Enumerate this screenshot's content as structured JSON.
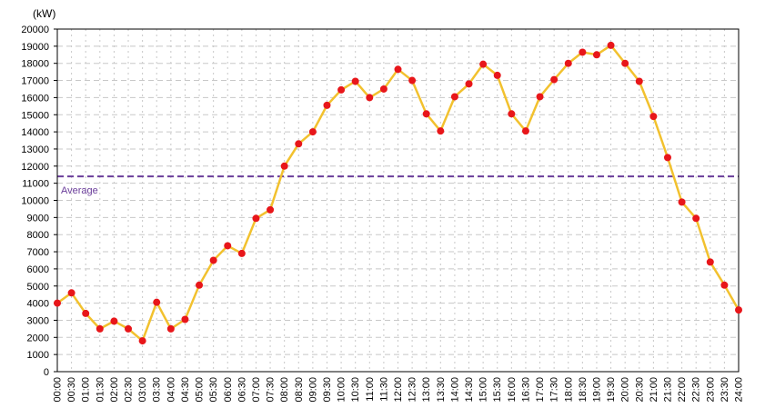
{
  "chart_data": {
    "type": "line",
    "unit_label": "(kW)",
    "ylim": [
      0,
      20000
    ],
    "y_ticks": [
      "0",
      "1000",
      "2000",
      "3000",
      "4000",
      "5000",
      "6000",
      "7000",
      "8000",
      "9000",
      "10000",
      "11000",
      "12000",
      "13000",
      "14000",
      "15000",
      "16000",
      "17000",
      "18000",
      "19000",
      "20000"
    ],
    "x": [
      "00:00",
      "00:30",
      "01:00",
      "01:30",
      "02:00",
      "02:30",
      "03:00",
      "03:30",
      "04:00",
      "04:30",
      "05:00",
      "05:30",
      "06:00",
      "06:30",
      "07:00",
      "07:30",
      "08:00",
      "08:30",
      "09:00",
      "09:30",
      "10:00",
      "10:30",
      "11:00",
      "11:30",
      "12:00",
      "12:30",
      "13:00",
      "13:30",
      "14:00",
      "14:30",
      "15:00",
      "15:30",
      "16:00",
      "16:30",
      "17:00",
      "17:30",
      "18:00",
      "18:30",
      "19:00",
      "19:30",
      "20:00",
      "20:30",
      "21:00",
      "21:30",
      "22:00",
      "22:30",
      "23:00",
      "23:30",
      "24:00"
    ],
    "values": [
      4000,
      4600,
      3400,
      2500,
      2950,
      2500,
      1800,
      4050,
      2500,
      3050,
      5050,
      6500,
      7350,
      6900,
      8950,
      9450,
      12000,
      13300,
      14000,
      15550,
      16450,
      16950,
      16000,
      16500,
      17650,
      17000,
      15050,
      14050,
      16050,
      16800,
      17950,
      17300,
      15050,
      14050,
      16050,
      17050,
      18000,
      18650,
      18500,
      19050,
      18000,
      16950,
      14900,
      12500,
      9900,
      8950,
      6400,
      5050,
      3600
    ],
    "average": 11400,
    "average_label": "Average",
    "grid": true,
    "colors": {
      "line": "#F2C12E",
      "marker": "#E8161A",
      "average": "#6A3D9A",
      "grid": "#C8C8C8",
      "axis": "#000000"
    }
  }
}
